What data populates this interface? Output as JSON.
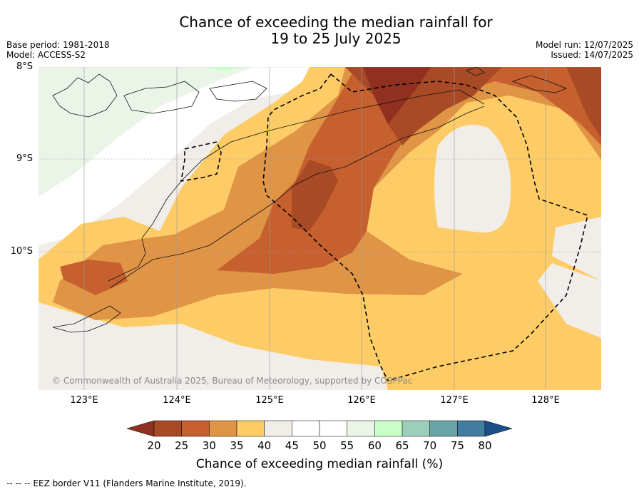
{
  "title_line1": "Chance of exceeding the median rainfall for",
  "title_line2": "19 to 25 July 2025",
  "meta_left": {
    "base_period": "Base period: 1981-2018",
    "model": "Model: ACCESS-S2"
  },
  "meta_right": {
    "model_run": "Model run: 12/07/2025",
    "issued": "Issued: 14/07/2025"
  },
  "lat_labels": [
    "8°S",
    "9°S",
    "10°S"
  ],
  "lon_labels": [
    "123°E",
    "124°E",
    "125°E",
    "126°E",
    "127°E",
    "128°E"
  ],
  "copyright": "© Commonwealth of Australia 2025, Bureau of Meteorology, supported by COSPPac",
  "colorbar": {
    "title": "Chance of exceeding median rainfall (%)",
    "ticks": [
      "20",
      "25",
      "30",
      "35",
      "40",
      "45",
      "50",
      "55",
      "60",
      "65",
      "70",
      "75",
      "80"
    ],
    "colors": [
      "#a94a26",
      "#c6602f",
      "#e09446",
      "#fecc66",
      "#f1ede8",
      "#ffffff",
      "#ffffff",
      "#eaf5e8",
      "#cbffca",
      "#9bcfbb",
      "#6aa3a5",
      "#427c9f"
    ],
    "under_color": "#8f3020",
    "over_color": "#1b4f8a"
  },
  "eez_legend": "--  --  -- EEZ border V11 (Flanders Marine Institute, 2019)."
}
